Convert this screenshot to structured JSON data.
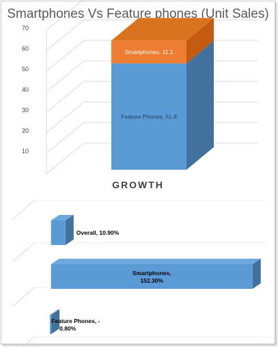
{
  "colors": {
    "blue_front": "#5b9bd5",
    "blue_side": "#41719c",
    "blue_top": "#6fa8dc",
    "orange_front": "#ed7d31",
    "orange_side": "#c55a11",
    "orange_top": "#d9731f",
    "grid": "#d9d9d9"
  },
  "chart_data": [
    {
      "type": "bar",
      "title": "Smartphones Vs Feature phones (Unit Sales)",
      "stacked": true,
      "three_d": true,
      "ylim": [
        0,
        70
      ],
      "yticks": [
        10,
        20,
        30,
        40,
        50,
        60,
        70
      ],
      "categories": [
        ""
      ],
      "series": [
        {
          "name": "Feature Phones",
          "values": [
            51.8
          ],
          "label": "Feature Phones, 51.8"
        },
        {
          "name": "Smartphones",
          "values": [
            11.1
          ],
          "label": "Smartphones, 11.1"
        }
      ]
    },
    {
      "type": "bar",
      "orientation": "horizontal",
      "three_d": true,
      "title": "GROWTH",
      "categories": [
        "Overall",
        "Smartphones",
        "Feature Phones"
      ],
      "values": [
        10.9,
        152.3,
        -0.8
      ],
      "labels": [
        [
          "Overall, 10.90%"
        ],
        [
          "Smartphones,",
          "152.30%"
        ],
        [
          "Feature Phones, -",
          "0.80%"
        ]
      ]
    }
  ]
}
